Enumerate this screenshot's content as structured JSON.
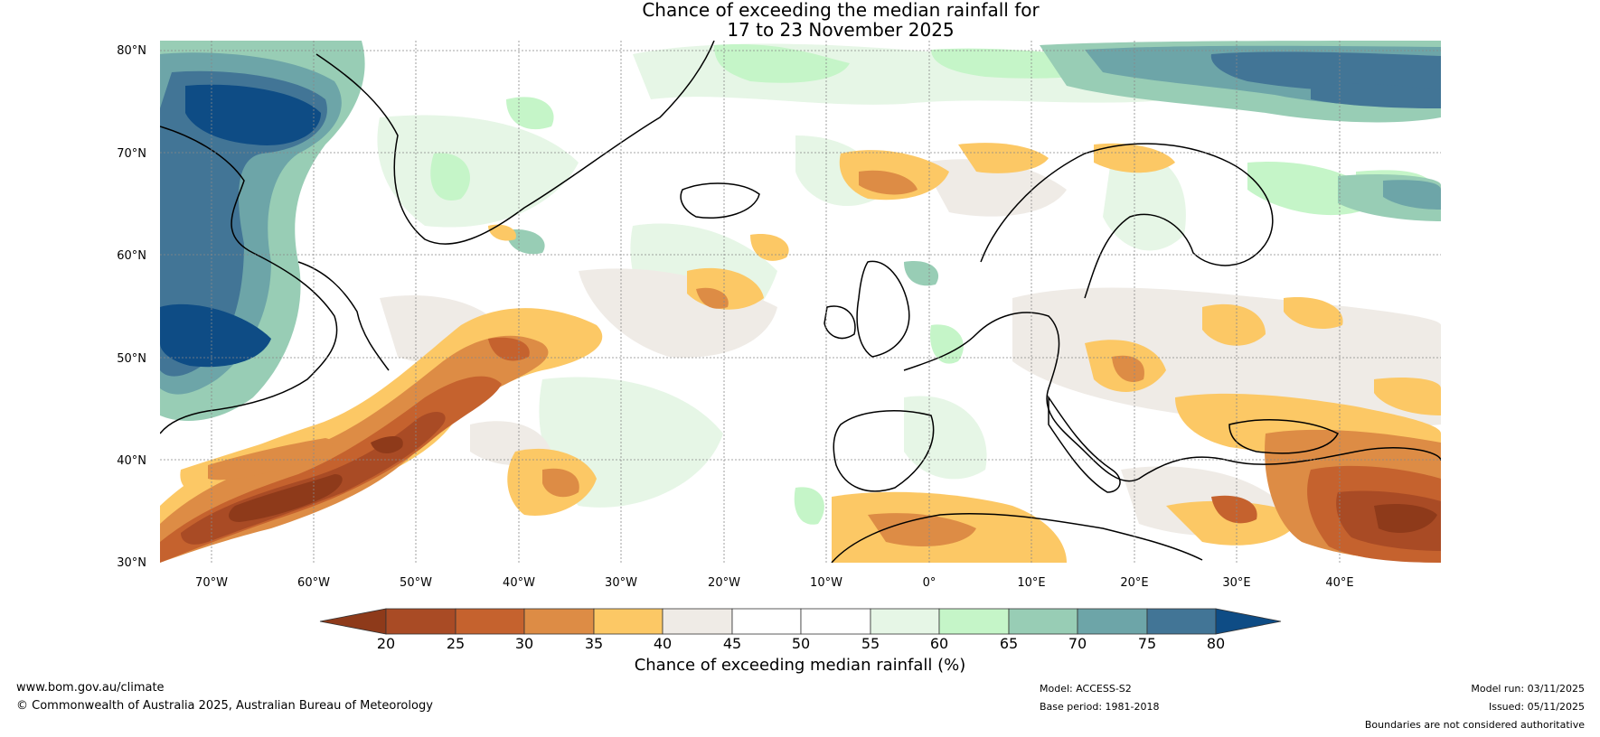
{
  "title": {
    "line1": "Chance of exceeding the median rainfall for",
    "line2": "17 to 23 November 2025"
  },
  "map": {
    "lat_labels": [
      "80°N",
      "70°N",
      "60°N",
      "50°N",
      "40°N",
      "30°N"
    ],
    "lon_labels": [
      "70°W",
      "60°W",
      "50°W",
      "40°W",
      "30°W",
      "20°W",
      "10°W",
      "0°",
      "10°E",
      "20°E",
      "30°E",
      "40°E"
    ]
  },
  "colorbar": {
    "title": "Chance of exceeding median rainfall (%)",
    "ticks": [
      "20",
      "25",
      "30",
      "35",
      "40",
      "45",
      "50",
      "55",
      "60",
      "65",
      "70",
      "75",
      "80"
    ],
    "colors": {
      "lt20": "#8e3a1a",
      "c20_25": "#a94b25",
      "c25_30": "#c5622e",
      "c30_35": "#dd8c45",
      "c35_40": "#fcc865",
      "c40_45": "#efebe6",
      "c45_50": "#ffffff",
      "c50_55": "#ffffff",
      "c55_60": "#e6f6e6",
      "c60_65": "#c5f5c8",
      "c65_70": "#98cdb5",
      "c70_75": "#6da5a8",
      "c75_80": "#427596",
      "gt80": "#0e4c85"
    }
  },
  "footer": {
    "website": "www.bom.gov.au/climate",
    "copyright": "© Commonwealth of Australia 2025, Australian Bureau of Meteorology",
    "model": "Model: ACCESS-S2",
    "base_period": "Base period: 1981-2018",
    "model_run": "Model run: 03/11/2025",
    "issued": "Issued: 05/11/2025",
    "disclaimer": "Boundaries are not considered authoritative"
  }
}
